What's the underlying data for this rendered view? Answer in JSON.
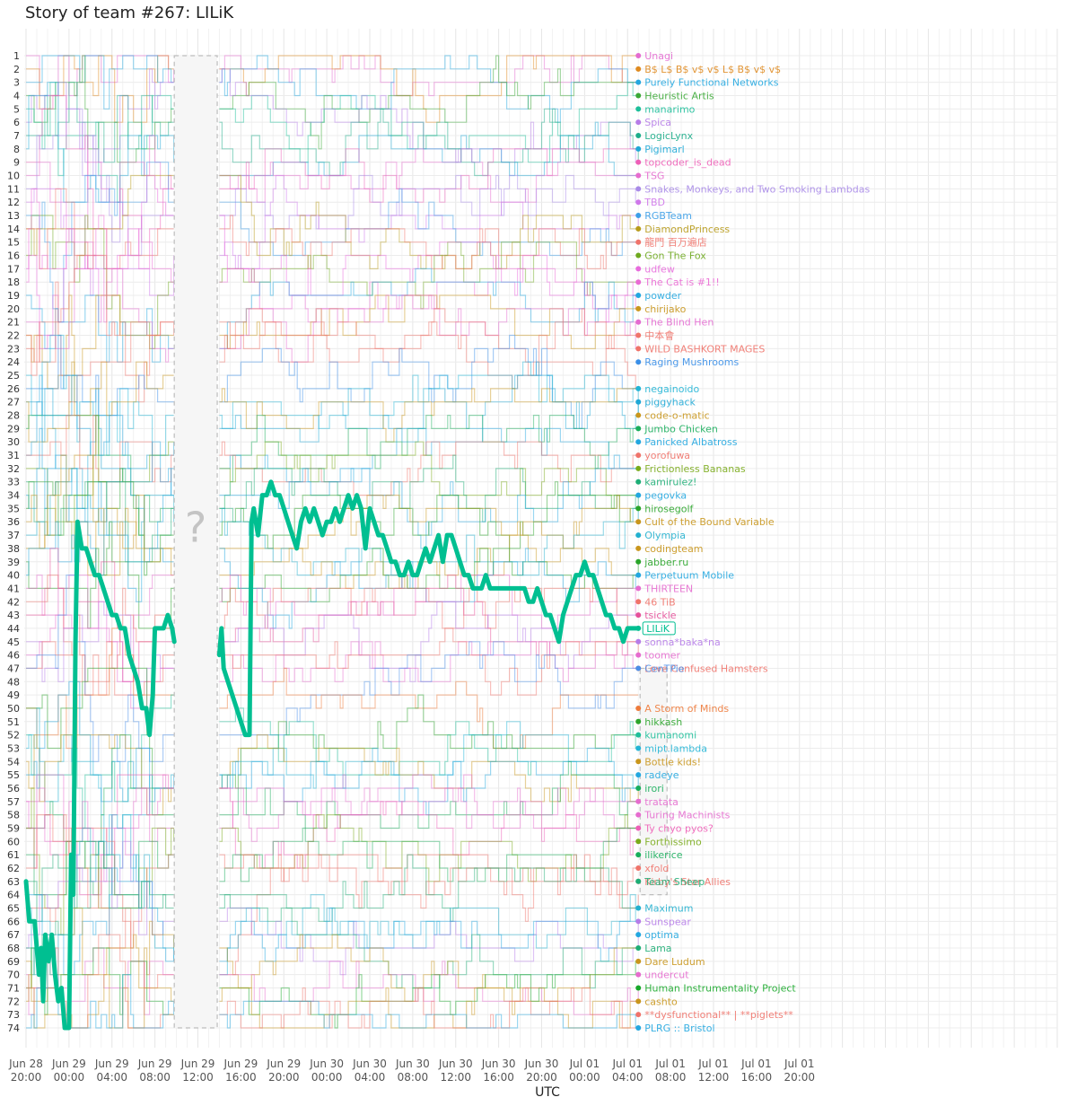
{
  "chart_data": {
    "type": "line",
    "title": "Story of team #267: LILiK",
    "xlabel": "UTC",
    "ylabel": "",
    "y_ticks": [
      "1",
      "2",
      "3",
      "4",
      "5",
      "6",
      "7",
      "8",
      "9",
      "10",
      "11",
      "12",
      "13",
      "14",
      "15",
      "16",
      "17",
      "18",
      "19",
      "20",
      "21",
      "22",
      "23",
      "24",
      "25",
      "26",
      "27",
      "28",
      "29",
      "30",
      "31",
      "32",
      "33",
      "34",
      "35",
      "36",
      "37",
      "38",
      "39",
      "40",
      "41",
      "42",
      "43",
      "44",
      "45",
      "46",
      "47",
      "48",
      "49",
      "50",
      "51",
      "52",
      "53",
      "54",
      "55",
      "56",
      "57",
      "58",
      "59",
      "60",
      "61",
      "62",
      "63",
      "64",
      "65",
      "66",
      "67",
      "68",
      "69",
      "70",
      "71",
      "72",
      "73",
      "74"
    ],
    "ylim": [
      1,
      74
    ],
    "y_reversed": true,
    "x_range_hours": [
      0,
      96
    ],
    "x_ticks": [
      {
        "h": 0,
        "day": "Jun 28",
        "time": "20:00"
      },
      {
        "h": 4,
        "day": "Jun 29",
        "time": "00:00"
      },
      {
        "h": 8,
        "day": "Jun 29",
        "time": "04:00"
      },
      {
        "h": 12,
        "day": "Jun 29",
        "time": "08:00"
      },
      {
        "h": 16,
        "day": "Jun 29",
        "time": "12:00"
      },
      {
        "h": 20,
        "day": "Jun 29",
        "time": "16:00"
      },
      {
        "h": 24,
        "day": "Jun 29",
        "time": "20:00"
      },
      {
        "h": 28,
        "day": "Jun 30",
        "time": "00:00"
      },
      {
        "h": 32,
        "day": "Jun 30",
        "time": "04:00"
      },
      {
        "h": 36,
        "day": "Jun 30",
        "time": "08:00"
      },
      {
        "h": 40,
        "day": "Jun 30",
        "time": "12:00"
      },
      {
        "h": 44,
        "day": "Jun 30",
        "time": "16:00"
      },
      {
        "h": 48,
        "day": "Jun 30",
        "time": "20:00"
      },
      {
        "h": 52,
        "day": "Jul 01",
        "time": "00:00"
      },
      {
        "h": 56,
        "day": "Jul 01",
        "time": "04:00"
      },
      {
        "h": 60,
        "day": "Jul 01",
        "time": "08:00"
      },
      {
        "h": 64,
        "day": "Jul 01",
        "time": "12:00"
      },
      {
        "h": 68,
        "day": "Jul 01",
        "time": "16:00"
      },
      {
        "h": 72,
        "day": "Jul 01",
        "time": "20:00"
      }
    ],
    "gap_hours": [
      13.8,
      17.8
    ],
    "gap_mark": "?",
    "highlight": {
      "name": "LILiK",
      "color": "#00bf91",
      "points": [
        [
          0,
          63
        ],
        [
          0.3,
          66
        ],
        [
          0.8,
          66
        ],
        [
          1.2,
          70
        ],
        [
          1.4,
          68
        ],
        [
          1.6,
          72
        ],
        [
          1.8,
          67
        ],
        [
          2.1,
          69
        ],
        [
          2.4,
          67
        ],
        [
          2.7,
          70
        ],
        [
          3.0,
          72
        ],
        [
          3.3,
          71
        ],
        [
          3.6,
          74
        ],
        [
          4.0,
          74
        ],
        [
          4.2,
          61
        ],
        [
          4.4,
          64
        ],
        [
          4.6,
          45
        ],
        [
          4.8,
          36
        ],
        [
          5.2,
          38
        ],
        [
          5.6,
          38
        ],
        [
          6.0,
          39
        ],
        [
          6.4,
          40
        ],
        [
          6.8,
          40
        ],
        [
          7.2,
          41
        ],
        [
          7.6,
          42
        ],
        [
          8.0,
          43
        ],
        [
          8.4,
          43
        ],
        [
          8.8,
          44
        ],
        [
          9.2,
          44
        ],
        [
          9.6,
          46
        ],
        [
          10.0,
          47
        ],
        [
          10.4,
          48
        ],
        [
          10.8,
          50
        ],
        [
          11.2,
          50
        ],
        [
          11.5,
          52
        ],
        [
          11.8,
          49
        ],
        [
          12.0,
          44
        ],
        [
          12.4,
          44
        ],
        [
          12.8,
          44
        ],
        [
          13.2,
          43
        ],
        [
          13.6,
          44
        ],
        [
          13.8,
          45
        ],
        [
          18.0,
          46
        ],
        [
          18.2,
          44
        ],
        [
          18.4,
          47
        ],
        [
          18.8,
          48
        ],
        [
          19.2,
          49
        ],
        [
          19.6,
          50
        ],
        [
          20.0,
          51
        ],
        [
          20.4,
          52
        ],
        [
          20.8,
          52
        ],
        [
          21.0,
          36
        ],
        [
          21.2,
          35
        ],
        [
          21.6,
          37
        ],
        [
          22.0,
          34
        ],
        [
          22.4,
          34
        ],
        [
          22.8,
          33
        ],
        [
          23.2,
          34
        ],
        [
          23.6,
          34
        ],
        [
          24.0,
          35
        ],
        [
          24.4,
          36
        ],
        [
          24.8,
          37
        ],
        [
          25.2,
          38
        ],
        [
          25.6,
          36
        ],
        [
          26.0,
          35
        ],
        [
          26.4,
          36
        ],
        [
          26.8,
          35
        ],
        [
          27.2,
          36
        ],
        [
          27.6,
          37
        ],
        [
          28.0,
          36
        ],
        [
          28.4,
          36
        ],
        [
          28.8,
          35
        ],
        [
          29.2,
          36
        ],
        [
          29.6,
          35
        ],
        [
          30.0,
          34
        ],
        [
          30.4,
          35
        ],
        [
          30.8,
          34
        ],
        [
          31.2,
          35
        ],
        [
          31.6,
          38
        ],
        [
          32.0,
          35
        ],
        [
          32.4,
          36
        ],
        [
          32.8,
          37
        ],
        [
          33.2,
          37
        ],
        [
          33.6,
          38
        ],
        [
          34.0,
          39
        ],
        [
          34.4,
          39
        ],
        [
          34.8,
          40
        ],
        [
          35.2,
          40
        ],
        [
          35.6,
          39
        ],
        [
          36.0,
          40
        ],
        [
          36.4,
          40
        ],
        [
          36.8,
          39
        ],
        [
          37.2,
          38
        ],
        [
          37.6,
          39
        ],
        [
          38.0,
          38
        ],
        [
          38.4,
          37
        ],
        [
          38.8,
          39
        ],
        [
          39.2,
          37
        ],
        [
          39.6,
          37
        ],
        [
          40.0,
          38
        ],
        [
          40.4,
          39
        ],
        [
          40.8,
          40
        ],
        [
          41.2,
          40
        ],
        [
          41.6,
          41
        ],
        [
          42.0,
          41
        ],
        [
          42.4,
          41
        ],
        [
          42.8,
          40
        ],
        [
          43.2,
          41
        ],
        [
          43.6,
          41
        ],
        [
          44.0,
          41
        ],
        [
          44.4,
          41
        ],
        [
          44.8,
          41
        ],
        [
          45.2,
          41
        ],
        [
          45.6,
          41
        ],
        [
          46.0,
          41
        ],
        [
          46.4,
          41
        ],
        [
          46.8,
          42
        ],
        [
          47.2,
          42
        ],
        [
          47.6,
          41
        ],
        [
          48.0,
          42
        ],
        [
          48.4,
          43
        ],
        [
          48.8,
          43
        ],
        [
          49.2,
          44
        ],
        [
          49.6,
          45
        ],
        [
          50.0,
          43
        ],
        [
          50.4,
          42
        ],
        [
          50.8,
          41
        ],
        [
          51.2,
          40
        ],
        [
          51.6,
          40
        ],
        [
          52.0,
          39
        ],
        [
          52.4,
          40
        ],
        [
          52.8,
          40
        ],
        [
          53.2,
          41
        ],
        [
          53.6,
          42
        ],
        [
          54.0,
          43
        ],
        [
          54.4,
          43
        ],
        [
          54.8,
          44
        ],
        [
          55.2,
          44
        ],
        [
          55.6,
          45
        ],
        [
          56.0,
          44
        ],
        [
          56.4,
          44
        ],
        [
          56.8,
          44
        ],
        [
          57.0,
          44
        ]
      ]
    },
    "teams": [
      {
        "rank": 1,
        "name": "Unagi",
        "color": "#e46bd1"
      },
      {
        "rank": 2,
        "name": "B$ L$ B$ v$ v$ L$ B$ v$ v$",
        "color": "#df8a1f"
      },
      {
        "rank": 3,
        "name": "Purely Functional Networks",
        "color": "#22a7e0"
      },
      {
        "rank": 4,
        "name": "Heuristic Artis",
        "color": "#3aa835"
      },
      {
        "rank": 5,
        "name": "manarimo",
        "color": "#1dbf9a"
      },
      {
        "rank": 6,
        "name": "Spica",
        "color": "#b67ce8"
      },
      {
        "rank": 7,
        "name": "LogicLynx",
        "color": "#1cad8a"
      },
      {
        "rank": 8,
        "name": "Pigimarl",
        "color": "#1ea8d6"
      },
      {
        "rank": 9,
        "name": "topcoder_is_dead",
        "color": "#ee5fb7"
      },
      {
        "rank": 10,
        "name": "TSG",
        "color": "#e66ccf"
      },
      {
        "rank": 11,
        "name": "Snakes, Monkeys, and Two Smoking Lambdas",
        "color": "#a98ae8"
      },
      {
        "rank": 12,
        "name": "TBD",
        "color": "#cf77ea"
      },
      {
        "rank": 13,
        "name": "RGBTeam",
        "color": "#3b9ee8"
      },
      {
        "rank": 14,
        "name": "DiamondPrincess",
        "color": "#b89b1a"
      },
      {
        "rank": 15,
        "name": "龍門 百万遍店",
        "color": "#f0736a"
      },
      {
        "rank": 16,
        "name": "Gon The Fox",
        "color": "#6ea91e"
      },
      {
        "rank": 17,
        "name": "udfew",
        "color": "#e86bdd"
      },
      {
        "rank": 18,
        "name": "The Cat is #1!!",
        "color": "#ea6bd4"
      },
      {
        "rank": 19,
        "name": "powder",
        "color": "#22a7e0"
      },
      {
        "rank": 20,
        "name": "chirijako",
        "color": "#c9961c"
      },
      {
        "rank": 21,
        "name": "The Blind Hen",
        "color": "#e46bd1"
      },
      {
        "rank": 22,
        "name": "中本會",
        "color": "#f0736a"
      },
      {
        "rank": 23,
        "name": "WILD BASHKORT MAGES",
        "color": "#f0736a"
      },
      {
        "rank": 24,
        "name": "Raging Mushrooms",
        "color": "#3a8fe8"
      },
      {
        "rank": 26,
        "name": "negainoido",
        "color": "#22b5d6"
      },
      {
        "rank": 27,
        "name": "piggyhack",
        "color": "#1ea8d6"
      },
      {
        "rank": 28,
        "name": "code-o-matic",
        "color": "#c9961c"
      },
      {
        "rank": 29,
        "name": "Jumbo Chicken",
        "color": "#18ae5c"
      },
      {
        "rank": 30,
        "name": "Panicked Albatross",
        "color": "#22a7e0"
      },
      {
        "rank": 31,
        "name": "yorofuwa",
        "color": "#f0736a"
      },
      {
        "rank": 32,
        "name": "Frictionless Bananas",
        "color": "#7aab1a"
      },
      {
        "rank": 33,
        "name": "kamirulez!",
        "color": "#1dae76"
      },
      {
        "rank": 34,
        "name": "pegovka",
        "color": "#22a7e0"
      },
      {
        "rank": 35,
        "name": "hirosegolf",
        "color": "#2aa52a"
      },
      {
        "rank": 36,
        "name": "Cult of the Bound Variable",
        "color": "#c9961c"
      },
      {
        "rank": 37,
        "name": "Olympia",
        "color": "#22b0cf"
      },
      {
        "rank": 38,
        "name": "codingteam",
        "color": "#c9961c"
      },
      {
        "rank": 39,
        "name": "jabber.ru",
        "color": "#2aa52a"
      },
      {
        "rank": 40,
        "name": "Perpetuum Mobile",
        "color": "#22a7e0"
      },
      {
        "rank": 41,
        "name": "THIRTEEN",
        "color": "#e66ccf"
      },
      {
        "rank": 42,
        "name": "46 TiB",
        "color": "#f0736a"
      },
      {
        "rank": 43,
        "name": "tsickle",
        "color": "#e6509a"
      },
      {
        "rank": 45,
        "name": "sonna*baka*na",
        "color": "#b67ce8"
      },
      {
        "rank": 46,
        "name": "toomer",
        "color": "#e66ccf"
      },
      {
        "rank": 47,
        "name": "Love Confused Hamsters",
        "color": "#f0736a"
      },
      {
        "rank": 47,
        "name": "CenTPie",
        "color": "#4a8ee8"
      },
      {
        "rank": 50,
        "name": "A Storm of Minds",
        "color": "#ee7a3a"
      },
      {
        "rank": 51,
        "name": "hikkash",
        "color": "#2aa52a"
      },
      {
        "rank": 52,
        "name": "kumanomi",
        "color": "#1dbf9a"
      },
      {
        "rank": 53,
        "name": "mipt.lambda",
        "color": "#22b5d6"
      },
      {
        "rank": 54,
        "name": "Bottle kids!",
        "color": "#c9961c"
      },
      {
        "rank": 55,
        "name": "radeye",
        "color": "#22a7e0"
      },
      {
        "rank": 56,
        "name": "irori",
        "color": "#18ae5c"
      },
      {
        "rank": 57,
        "name": "tratata",
        "color": "#e66ccf"
      },
      {
        "rank": 58,
        "name": "Turing Machinists",
        "color": "#e66ccf"
      },
      {
        "rank": 59,
        "name": "Ty chyo pyos?",
        "color": "#ee5fb7"
      },
      {
        "rank": 60,
        "name": "Forthissimo",
        "color": "#7aab1a"
      },
      {
        "rank": 61,
        "name": "ilikerice",
        "color": "#18ae5c"
      },
      {
        "rank": 62,
        "name": "xfold",
        "color": "#f0736a"
      },
      {
        "rank": 63,
        "name": "Kirby's Star Allies",
        "color": "#f0736a"
      },
      {
        "rank": 63,
        "name": "Team Sheep",
        "color": "#1dae76"
      },
      {
        "rank": 65,
        "name": "Maximum",
        "color": "#22b0cf"
      },
      {
        "rank": 66,
        "name": "Sunspear",
        "color": "#b67ce8"
      },
      {
        "rank": 67,
        "name": "optima",
        "color": "#22a7e0"
      },
      {
        "rank": 68,
        "name": "Lama",
        "color": "#1dae76"
      },
      {
        "rank": 69,
        "name": "Dare Ludum",
        "color": "#c9961c"
      },
      {
        "rank": 70,
        "name": "undercut",
        "color": "#e66ccf"
      },
      {
        "rank": 71,
        "name": "Human Instrumentality Project",
        "color": "#18a82a"
      },
      {
        "rank": 72,
        "name": "cashto",
        "color": "#c9961c"
      },
      {
        "rank": 73,
        "name": "**dysfunctional** | **piglets**",
        "color": "#f0736a"
      },
      {
        "rank": 74,
        "name": "PLRG :: Bristol",
        "color": "#22a7e0"
      }
    ]
  }
}
